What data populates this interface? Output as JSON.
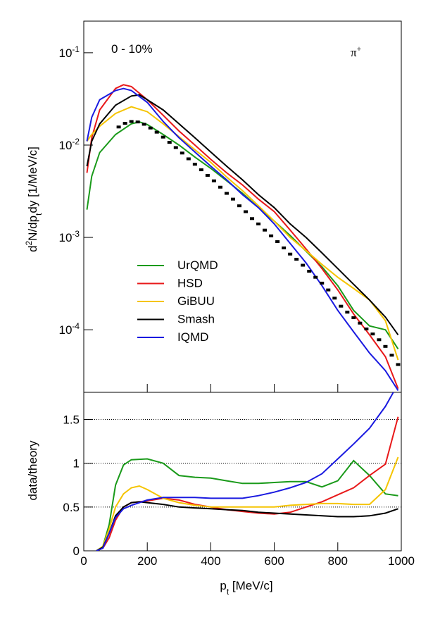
{
  "chart_data": [
    {
      "type": "line",
      "log_y": true,
      "annotations": [
        "0 - 10%",
        "π^{+}"
      ],
      "ylabel": "d^{2}N/dp_{t}dy [1/MeV/c]",
      "xlim": [
        0,
        1000
      ],
      "ylim": [
        2.1e-05,
        0.22
      ],
      "yticks": [
        {
          "value": 0.1,
          "label": "10^{-1}"
        },
        {
          "value": 0.01,
          "label": "10^{-2}"
        },
        {
          "value": 0.001,
          "label": "10^{-3}"
        },
        {
          "value": 0.0001,
          "label": "10^{-4}"
        }
      ],
      "legend": "center left",
      "series": [
        {
          "name": "UrQMD",
          "color": "#1a9a1a",
          "x": [
            10,
            25,
            50,
            100,
            150,
            175,
            200,
            250,
            300,
            350,
            400,
            450,
            500,
            550,
            600,
            650,
            700,
            750,
            800,
            850,
            900,
            950,
            990
          ],
          "values": [
            0.002,
            0.0046,
            0.0083,
            0.013,
            0.017,
            0.0178,
            0.0167,
            0.013,
            0.01,
            0.0074,
            0.0056,
            0.0041,
            0.003,
            0.0021,
            0.0015,
            0.00105,
            0.00071,
            0.00048,
            0.0003,
            0.000162,
            0.00011,
            0.0001,
            6.2e-05
          ]
        },
        {
          "name": "HSD",
          "color": "#e8191a",
          "x": [
            10,
            25,
            50,
            100,
            125,
            150,
            200,
            250,
            300,
            350,
            400,
            450,
            500,
            550,
            600,
            650,
            700,
            750,
            800,
            850,
            900,
            950,
            990
          ],
          "values": [
            0.005,
            0.012,
            0.024,
            0.041,
            0.045,
            0.043,
            0.031,
            0.021,
            0.0142,
            0.01,
            0.007,
            0.005,
            0.0037,
            0.0026,
            0.0019,
            0.0012,
            0.00075,
            0.00046,
            0.00027,
            0.000148,
            8.8e-05,
            5.1e-05,
            2.3e-05
          ]
        },
        {
          "name": "GiBUU",
          "color": "#f5c400",
          "x": [
            10,
            25,
            50,
            100,
            150,
            200,
            250,
            300,
            350,
            400,
            450,
            500,
            550,
            600,
            650,
            700,
            750,
            800,
            850,
            900,
            950,
            990
          ],
          "values": [
            0.011,
            0.013,
            0.016,
            0.022,
            0.026,
            0.023,
            0.017,
            0.0123,
            0.0089,
            0.0065,
            0.0045,
            0.0032,
            0.0022,
            0.0015,
            0.001,
            0.00072,
            0.00051,
            0.00037,
            0.00028,
            0.00021,
            0.000125,
            4.7e-05
          ]
        },
        {
          "name": "Smash",
          "color": "#000000",
          "x": [
            10,
            25,
            50,
            100,
            150,
            175,
            200,
            250,
            300,
            350,
            400,
            450,
            500,
            550,
            600,
            650,
            700,
            750,
            800,
            850,
            900,
            950,
            990
          ],
          "values": [
            0.0059,
            0.011,
            0.017,
            0.027,
            0.034,
            0.035,
            0.031,
            0.024,
            0.017,
            0.012,
            0.0084,
            0.0059,
            0.0042,
            0.0029,
            0.0021,
            0.0014,
            0.001,
            0.00068,
            0.00046,
            0.00031,
            0.00021,
            0.000137,
            8.8e-05
          ]
        },
        {
          "name": "IQMD",
          "color": "#1a1ae0",
          "x": [
            10,
            25,
            50,
            100,
            125,
            150,
            200,
            250,
            300,
            350,
            400,
            450,
            500,
            550,
            600,
            650,
            700,
            750,
            800,
            850,
            900,
            950,
            990
          ],
          "values": [
            0.011,
            0.02,
            0.031,
            0.039,
            0.041,
            0.039,
            0.029,
            0.018,
            0.012,
            0.0084,
            0.0059,
            0.0042,
            0.0029,
            0.0021,
            0.0014,
            0.00086,
            0.00053,
            0.0003,
            0.000162,
            9.5e-05,
            5.6e-05,
            3.6e-05,
            2.2e-05
          ]
        }
      ],
      "points": {
        "color": "#000000",
        "x": [
          110,
          130,
          150,
          170,
          190,
          210,
          230,
          250,
          270,
          290,
          310,
          330,
          350,
          370,
          390,
          410,
          430,
          450,
          470,
          490,
          510,
          530,
          550,
          570,
          590,
          610,
          630,
          650,
          670,
          690,
          710,
          730,
          750,
          770,
          790,
          810,
          830,
          850,
          870,
          890,
          910,
          930,
          950,
          970,
          990
        ],
        "values": [
          0.0157,
          0.0172,
          0.018,
          0.0178,
          0.0168,
          0.0153,
          0.0138,
          0.0122,
          0.0107,
          0.0094,
          0.0082,
          0.0071,
          0.0062,
          0.0054,
          0.0047,
          0.0041,
          0.0035,
          0.003,
          0.0026,
          0.0022,
          0.0019,
          0.0016,
          0.0014,
          0.0012,
          0.00104,
          0.0009,
          0.00077,
          0.00066,
          0.00058,
          0.0005,
          0.00043,
          0.00037,
          0.00032,
          0.00027,
          0.00022,
          0.00018,
          0.000155,
          0.000135,
          0.000118,
          0.000102,
          9e-05,
          7.8e-05,
          6.6e-05,
          5.3e-05,
          4.2e-05
        ]
      }
    },
    {
      "type": "line",
      "log_y": false,
      "ylabel": "data/theory",
      "xlabel": "p_{t}  [MeV/c]",
      "xlim": [
        0,
        1000
      ],
      "xticks": [
        0,
        200,
        400,
        600,
        800,
        1000
      ],
      "ylim": [
        0,
        1.81
      ],
      "yticks": [
        0,
        0.5,
        1,
        1.5
      ],
      "grid": true,
      "series": [
        {
          "color": "#1a9a1a",
          "x": [
            40,
            60,
            80,
            100,
            125,
            150,
            200,
            250,
            300,
            350,
            400,
            450,
            500,
            550,
            600,
            650,
            700,
            750,
            800,
            850,
            900,
            950,
            990
          ],
          "values": [
            0,
            0.05,
            0.3,
            0.75,
            0.98,
            1.04,
            1.05,
            1.0,
            0.86,
            0.84,
            0.83,
            0.8,
            0.77,
            0.77,
            0.78,
            0.79,
            0.79,
            0.73,
            0.8,
            1.03,
            0.86,
            0.65,
            0.63
          ]
        },
        {
          "color": "#e8191a",
          "x": [
            40,
            60,
            80,
            100,
            125,
            150,
            200,
            250,
            300,
            350,
            400,
            450,
            500,
            550,
            600,
            650,
            700,
            750,
            800,
            850,
            900,
            950,
            990
          ],
          "values": [
            0,
            0.03,
            0.15,
            0.35,
            0.5,
            0.55,
            0.57,
            0.6,
            0.58,
            0.53,
            0.5,
            0.47,
            0.45,
            0.43,
            0.42,
            0.44,
            0.5,
            0.56,
            0.64,
            0.72,
            0.86,
            0.99,
            1.53
          ]
        },
        {
          "color": "#f5c400",
          "x": [
            40,
            60,
            80,
            100,
            125,
            150,
            175,
            200,
            250,
            300,
            350,
            400,
            450,
            500,
            550,
            600,
            650,
            700,
            750,
            800,
            850,
            900,
            950,
            990
          ],
          "values": [
            0,
            0.05,
            0.25,
            0.5,
            0.65,
            0.72,
            0.74,
            0.7,
            0.6,
            0.55,
            0.52,
            0.5,
            0.5,
            0.5,
            0.5,
            0.5,
            0.52,
            0.53,
            0.54,
            0.54,
            0.53,
            0.53,
            0.7,
            1.07
          ]
        },
        {
          "color": "#000000",
          "x": [
            40,
            60,
            80,
            100,
            125,
            150,
            175,
            200,
            250,
            300,
            350,
            400,
            450,
            500,
            550,
            600,
            650,
            700,
            750,
            800,
            850,
            900,
            950,
            990
          ],
          "values": [
            0,
            0.04,
            0.2,
            0.4,
            0.5,
            0.55,
            0.56,
            0.55,
            0.53,
            0.5,
            0.49,
            0.48,
            0.47,
            0.46,
            0.44,
            0.43,
            0.42,
            0.41,
            0.4,
            0.39,
            0.39,
            0.4,
            0.43,
            0.48
          ]
        },
        {
          "color": "#1a1ae0",
          "x": [
            40,
            60,
            80,
            100,
            125,
            150,
            200,
            250,
            300,
            350,
            400,
            450,
            500,
            550,
            600,
            650,
            700,
            750,
            800,
            850,
            900,
            950,
            975
          ],
          "values": [
            0,
            0.03,
            0.2,
            0.38,
            0.48,
            0.52,
            0.58,
            0.61,
            0.61,
            0.61,
            0.6,
            0.6,
            0.6,
            0.63,
            0.67,
            0.72,
            0.78,
            0.88,
            1.05,
            1.22,
            1.4,
            1.65,
            1.81
          ]
        }
      ]
    }
  ]
}
